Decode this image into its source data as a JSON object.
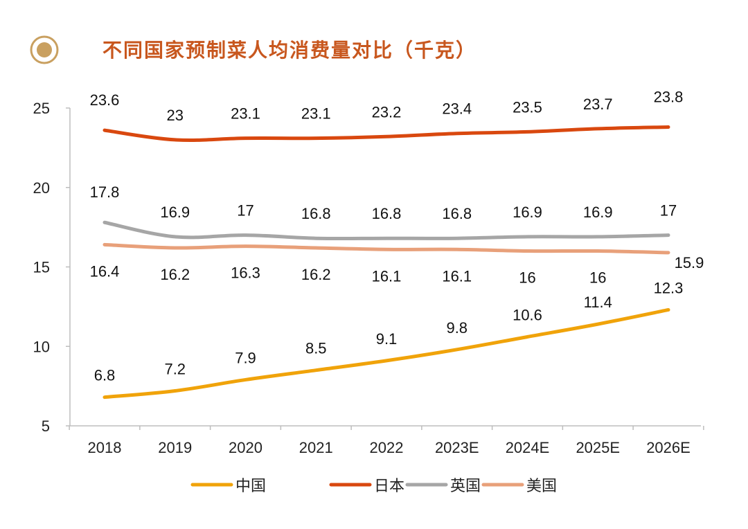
{
  "chart_data": {
    "type": "line",
    "title": "不同国家预制菜人均消费量对比（千克）",
    "categories": [
      "2018",
      "2019",
      "2020",
      "2021",
      "2022",
      "2023E",
      "2024E",
      "2025E",
      "2026E"
    ],
    "y_ticks": [
      "25",
      "20",
      "15",
      "10",
      "5"
    ],
    "ylim": [
      5,
      25
    ],
    "grid": false,
    "legend_position": "bottom",
    "series": [
      {
        "name": "中国",
        "color": "#f0a30a",
        "values": [
          6.8,
          7.2,
          7.9,
          8.5,
          9.1,
          9.8,
          10.6,
          11.4,
          12.3
        ]
      },
      {
        "name": "日本",
        "color": "#d9480f",
        "values": [
          23.6,
          23,
          23.1,
          23.1,
          23.2,
          23.4,
          23.5,
          23.7,
          23.8
        ]
      },
      {
        "name": "英国",
        "color": "#a6a6a6",
        "values": [
          17.8,
          16.9,
          17,
          16.8,
          16.8,
          16.8,
          16.9,
          16.9,
          17
        ]
      },
      {
        "name": "美国",
        "color": "#e8a07a",
        "values": [
          16.4,
          16.2,
          16.3,
          16.2,
          16.1,
          16.1,
          16,
          16,
          15.9
        ]
      }
    ]
  }
}
